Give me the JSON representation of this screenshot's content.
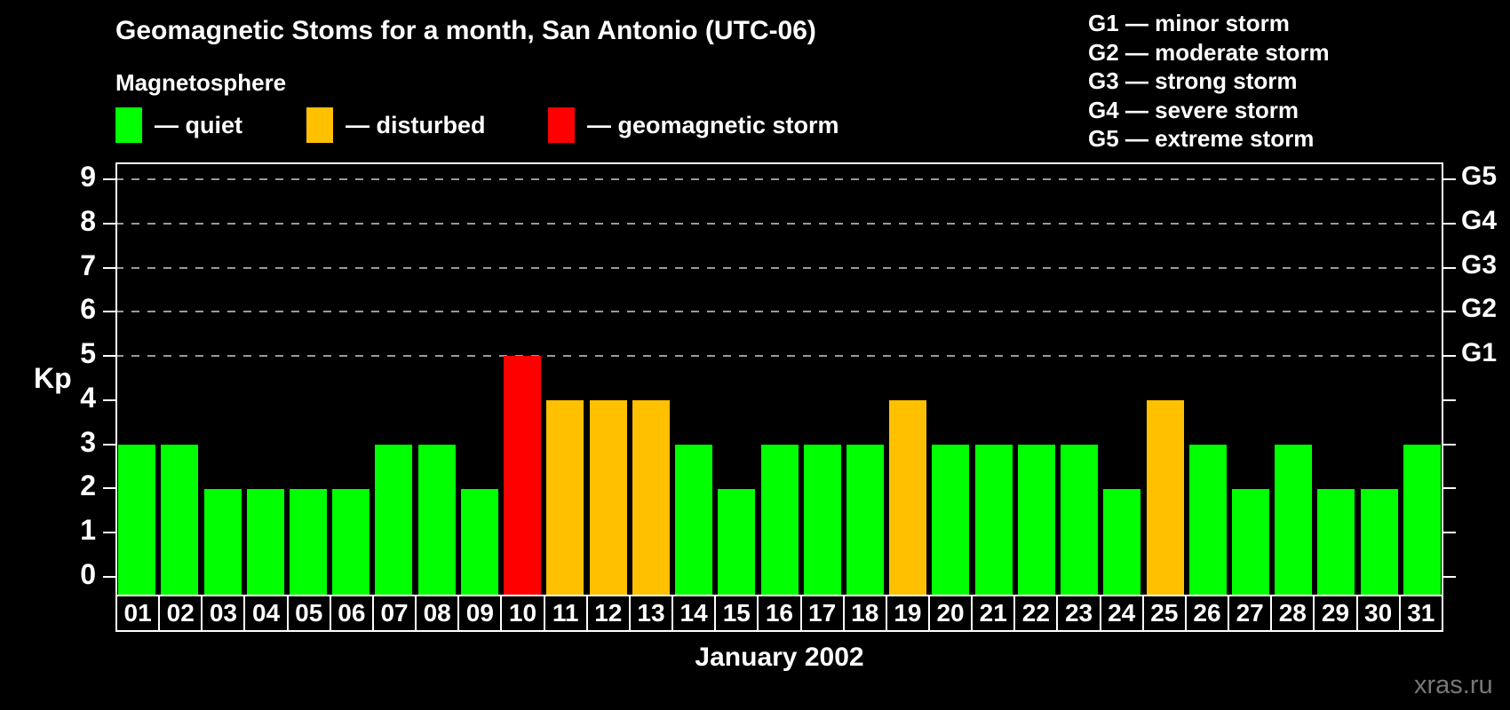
{
  "header": {
    "title": "Geomagnetic Stoms for a month, San Antonio (UTC-06)",
    "subtitle": "Magnetosphere",
    "legend": [
      {
        "key": "quiet",
        "label": "— quiet",
        "color": "#00ff00"
      },
      {
        "key": "disturbed",
        "label": "— disturbed",
        "color": "#ffc000"
      },
      {
        "key": "storm",
        "label": "— geomagnetic storm",
        "color": "#ff0000"
      }
    ],
    "g_scale_legend": [
      "G1 — minor storm",
      "G2 — moderate storm",
      "G3 — strong storm",
      "G4 — severe storm",
      "G5 — extreme storm"
    ]
  },
  "chart_data": {
    "type": "bar",
    "title": "Geomagnetic Stoms for a month, San Antonio (UTC-06)",
    "ylabel": "Kp",
    "xlabel": "January 2002",
    "categories": [
      "01",
      "02",
      "03",
      "04",
      "05",
      "06",
      "07",
      "08",
      "09",
      "10",
      "11",
      "12",
      "13",
      "14",
      "15",
      "16",
      "17",
      "18",
      "19",
      "20",
      "21",
      "22",
      "23",
      "24",
      "25",
      "26",
      "27",
      "28",
      "29",
      "30",
      "31"
    ],
    "values": [
      3,
      3,
      2,
      2,
      2,
      2,
      3,
      3,
      2,
      5,
      4,
      4,
      4,
      3,
      2,
      3,
      3,
      3,
      4,
      3,
      3,
      3,
      3,
      2,
      4,
      3,
      2,
      3,
      2,
      2,
      3
    ],
    "colors": {
      "quiet": "#00ff00",
      "disturbed": "#ffc000",
      "storm": "#ff0000"
    },
    "color_rule": {
      "quiet_max": 3,
      "disturbed": 4,
      "storm_min": 5
    },
    "y_ticks": [
      0,
      1,
      2,
      3,
      4,
      5,
      6,
      7,
      8,
      9
    ],
    "gridlines_at": [
      5,
      6,
      7,
      8,
      9
    ],
    "right_axis_labels": [
      {
        "value": 5,
        "label": "G1"
      },
      {
        "value": 6,
        "label": "G2"
      },
      {
        "value": 7,
        "label": "G3"
      },
      {
        "value": 8,
        "label": "G4"
      },
      {
        "value": 9,
        "label": "G5"
      }
    ],
    "ylim": [
      -0.4,
      9.38
    ],
    "grid": "dashed",
    "legend_position": "top-left"
  },
  "footer": {
    "xaxis_title": "January 2002",
    "watermark": "xras.ru"
  }
}
